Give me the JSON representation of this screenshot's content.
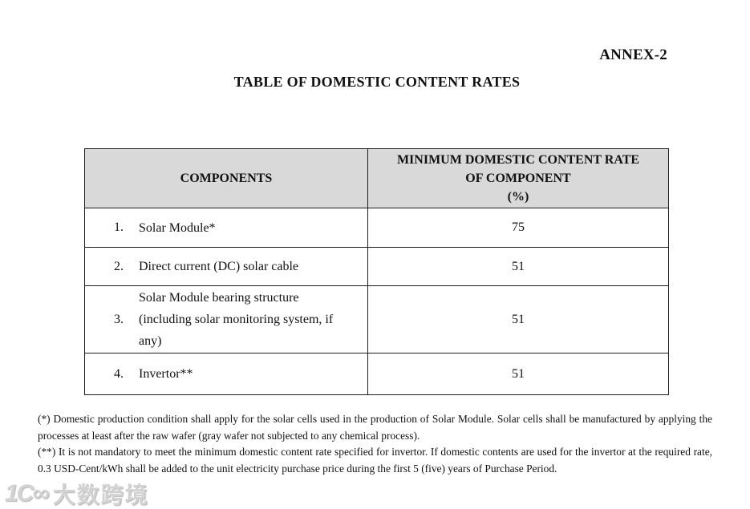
{
  "page": {
    "annex_label": "ANNEX-2",
    "title": "TABLE OF DOMESTIC CONTENT RATES"
  },
  "table": {
    "header": {
      "col1": "COMPONENTS",
      "col2_line1": "MINIMUM DOMESTIC CONTENT RATE",
      "col2_line2": "OF COMPONENT",
      "col2_line3": "(%)"
    },
    "rows": [
      {
        "num": "1.",
        "component": "Solar Module*",
        "rate": "75"
      },
      {
        "num": "2.",
        "component": "Direct current (DC) solar cable",
        "rate": "51"
      },
      {
        "num": "3.",
        "component": "Solar Module bearing structure (including solar monitoring system, if any)",
        "rate": "51"
      },
      {
        "num": "4.",
        "component": "Invertor**",
        "rate": "51"
      }
    ]
  },
  "footnotes": [
    "(*) Domestic production condition shall apply for the solar cells used in the production of Solar Module. Solar cells shall be manufactured by applying the processes at least after the raw wafer (gray wafer not subjected to any chemical process).",
    "(**) It is not mandatory to meet the minimum domestic content rate specified for invertor. If domestic contents are used for the invertor at the required rate, 0.3 USD-Cent/kWh shall be added to the unit electricity purchase price during the first 5 (five) years of Purchase Period."
  ],
  "watermark": {
    "logo_icon": "dashu-kuajing-logo-icon",
    "logo_glyph": "1C∞",
    "text": "大数跨境"
  },
  "colors": {
    "header_bg": "#d9d9d9",
    "border": "#1c1c1c",
    "text": "#111111",
    "watermark": "#d2d2d2"
  }
}
